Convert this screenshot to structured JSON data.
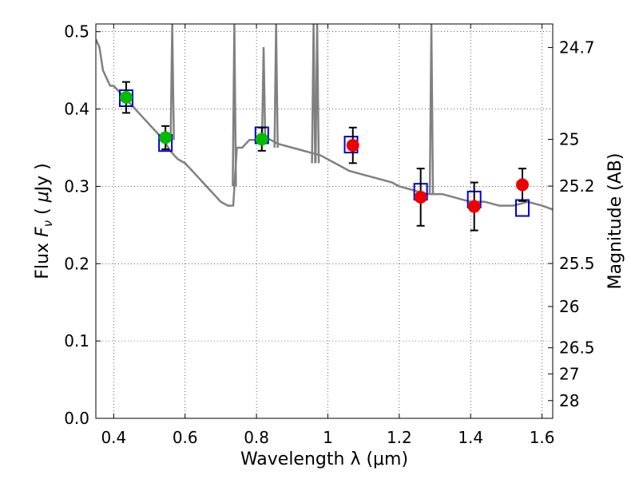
{
  "chart_data": {
    "type": "scatter",
    "title": "",
    "xlabel": "Wavelength  λ (μm)",
    "ylabel": "Flux  F_ν  ( μJy )",
    "ylabel_right": "Magnitude (AB)",
    "xlim": [
      0.35,
      1.63
    ],
    "ylim": [
      0.0,
      0.51
    ],
    "grid": true,
    "x_ticks": [
      0.4,
      0.6,
      0.8,
      1.0,
      1.2,
      1.4,
      1.6
    ],
    "x_tick_labels": [
      "0.4",
      "0.6",
      "0.8",
      "1",
      "1.2",
      "1.4",
      "1.6"
    ],
    "y_ticks": [
      0.0,
      0.1,
      0.2,
      0.3,
      0.4,
      0.5
    ],
    "y_tick_labels": [
      "0.0",
      "0.1",
      "0.2",
      "0.3",
      "0.4",
      "0.5"
    ],
    "right_axis_ticks": [
      {
        "flux": 0.4795,
        "label": "24.7"
      },
      {
        "flux": 0.3608,
        "label": "25"
      },
      {
        "flux": 0.3003,
        "label": "25.2"
      },
      {
        "flux": 0.2002,
        "label": "25.5"
      },
      {
        "flux": 0.1446,
        "label": "26"
      },
      {
        "flux": 0.0912,
        "label": "26.5"
      },
      {
        "flux": 0.0575,
        "label": "27"
      },
      {
        "flux": 0.0229,
        "label": "28"
      }
    ],
    "series": [
      {
        "style": "line",
        "color": "#808080",
        "points": [
          [
            0.35,
            0.49
          ],
          [
            0.36,
            0.48
          ],
          [
            0.37,
            0.45
          ],
          [
            0.38,
            0.44
          ],
          [
            0.39,
            0.43
          ],
          [
            0.4,
            0.43
          ],
          [
            0.42,
            0.42
          ],
          [
            0.44,
            0.41
          ],
          [
            0.46,
            0.4
          ],
          [
            0.48,
            0.39
          ],
          [
            0.5,
            0.38
          ],
          [
            0.52,
            0.37
          ],
          [
            0.54,
            0.36
          ],
          [
            0.56,
            0.345
          ],
          [
            0.58,
            0.335
          ],
          [
            0.6,
            0.33
          ],
          [
            0.62,
            0.32
          ],
          [
            0.64,
            0.31
          ],
          [
            0.66,
            0.3
          ],
          [
            0.68,
            0.29
          ],
          [
            0.7,
            0.28
          ],
          [
            0.72,
            0.275
          ],
          [
            0.735,
            0.275
          ],
          [
            0.745,
            0.35
          ],
          [
            0.76,
            0.35
          ],
          [
            0.78,
            0.36
          ],
          [
            0.8,
            0.36
          ],
          [
            0.82,
            0.365
          ],
          [
            0.84,
            0.36
          ],
          [
            0.86,
            0.355
          ],
          [
            0.9,
            0.35
          ],
          [
            0.94,
            0.345
          ],
          [
            0.98,
            0.34
          ],
          [
            1.02,
            0.33
          ],
          [
            1.06,
            0.32
          ],
          [
            1.1,
            0.315
          ],
          [
            1.14,
            0.31
          ],
          [
            1.18,
            0.305
          ],
          [
            1.2,
            0.3
          ],
          [
            1.24,
            0.295
          ],
          [
            1.28,
            0.29
          ],
          [
            1.32,
            0.29
          ],
          [
            1.36,
            0.285
          ],
          [
            1.4,
            0.28
          ],
          [
            1.44,
            0.28
          ],
          [
            1.48,
            0.275
          ],
          [
            1.52,
            0.275
          ],
          [
            1.56,
            0.28
          ],
          [
            1.6,
            0.275
          ],
          [
            1.63,
            0.27
          ]
        ],
        "spikes": [
          {
            "x": 0.564,
            "top": 0.51,
            "base": 0.36
          },
          {
            "x": 0.738,
            "top": 0.51,
            "base": 0.3
          },
          {
            "x": 0.82,
            "top": 0.48,
            "base": 0.36
          },
          {
            "x": 0.855,
            "top": 0.51,
            "base": 0.35
          },
          {
            "x": 0.96,
            "top": 0.51,
            "base": 0.33
          },
          {
            "x": 0.97,
            "top": 0.51,
            "base": 0.33
          },
          {
            "x": 1.29,
            "top": 0.51,
            "base": 0.29
          }
        ]
      },
      {
        "style": "markers",
        "marker": "open-square",
        "color": "#0000cc",
        "x": [
          0.435,
          0.545,
          0.815,
          1.065,
          1.26,
          1.41,
          1.545
        ],
        "y": [
          0.414,
          0.356,
          0.366,
          0.354,
          0.293,
          0.283,
          0.272
        ]
      },
      {
        "style": "markers",
        "marker": "filled-circle",
        "color": "#00bb00",
        "x": [
          0.435,
          0.545,
          0.815
        ],
        "y": [
          0.415,
          0.363,
          0.361
        ],
        "y_err": [
          0.02,
          0.015,
          0.015
        ]
      },
      {
        "style": "markers",
        "marker": "filled-circle",
        "color": "#ee0000",
        "x": [
          1.07,
          1.26,
          1.41,
          1.545
        ],
        "y": [
          0.353,
          0.286,
          0.274,
          0.302
        ],
        "y_err": [
          0.023,
          0.037,
          0.031,
          0.021
        ]
      }
    ]
  }
}
